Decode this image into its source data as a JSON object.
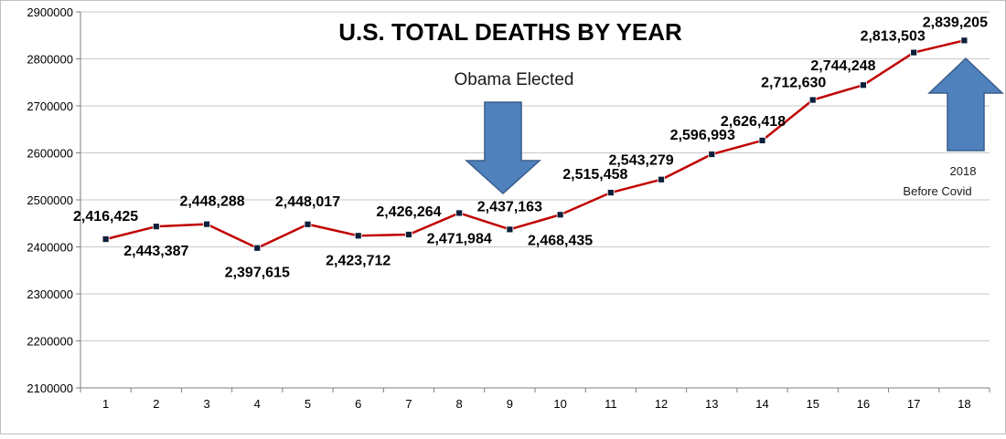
{
  "chart_data": {
    "type": "line",
    "title": "U.S.  TOTAL DEATHS BY YEAR",
    "xlabel": "",
    "ylabel": "",
    "categories": [
      "1",
      "2",
      "3",
      "4",
      "5",
      "6",
      "7",
      "8",
      "9",
      "10",
      "11",
      "12",
      "13",
      "14",
      "15",
      "16",
      "17",
      "18"
    ],
    "series": [
      {
        "name": "Total deaths",
        "values": [
          2416425,
          2443387,
          2448288,
          2397615,
          2448017,
          2423712,
          2426264,
          2471984,
          2437163,
          2468435,
          2515458,
          2543279,
          2596993,
          2626418,
          2712630,
          2744248,
          2813503,
          2839205
        ],
        "data_labels": [
          "2,416,425",
          "2,443,387",
          "2,448,288",
          "2,397,615",
          "2,448,017",
          "2,423,712",
          "2,426,264",
          "2,471,984",
          "2,437,163",
          "2,468,435",
          "2,515,458",
          "2,543,279",
          "2,596,993",
          "2,626,418",
          "2,712,630",
          "2,744,248",
          "2,813,503",
          "2,839,205"
        ]
      }
    ],
    "ylim": [
      2100000,
      2900000
    ],
    "y_ticks": [
      2100000,
      2200000,
      2300000,
      2400000,
      2500000,
      2600000,
      2700000,
      2800000,
      2900000
    ],
    "y_tick_labels": [
      "2100000",
      "2200000",
      "2300000",
      "2400000",
      "2500000",
      "2600000",
      "2700000",
      "2800000",
      "2900000"
    ],
    "grid": true,
    "legend": "none",
    "line_color": "#c00000",
    "marker_color": "#0b1f3a",
    "annotations": [
      {
        "text": "Obama Elected",
        "arrow": "down",
        "at_category": "9"
      },
      {
        "text": "2018",
        "arrow": "up",
        "at_category": "18"
      },
      {
        "text": "Before Covid",
        "at_category": "18"
      }
    ],
    "arrow_color": "#4f81bd",
    "arrow_stroke": "#385d8a"
  }
}
